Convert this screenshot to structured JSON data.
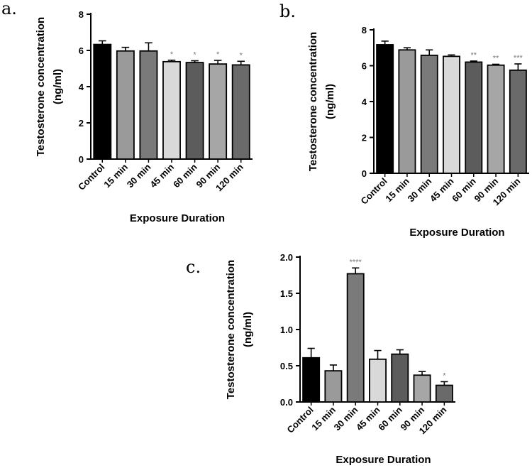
{
  "chart_data": [
    {
      "type": "bar",
      "panel_letter": "a.",
      "categories": [
        "Control",
        "15 min",
        "30 min",
        "45 min",
        "60 min",
        "90 min",
        "120 min"
      ],
      "values": [
        6.33,
        5.97,
        5.97,
        5.38,
        5.33,
        5.25,
        5.2
      ],
      "errors": [
        0.2,
        0.2,
        0.45,
        0.08,
        0.1,
        0.2,
        0.2
      ],
      "significance": [
        "",
        "",
        "",
        "*",
        "*",
        "*",
        "*"
      ],
      "bar_colors": [
        "#000000",
        "#9a9a9a",
        "#7a7a7a",
        "#d9d9d9",
        "#5c5c5c",
        "#a6a6a6",
        "#6a6a6a"
      ],
      "ylabel_lines": [
        "Testosterone concentration",
        "(ng/ml)"
      ],
      "xlabel": "Exposure Duration",
      "ylim": [
        0,
        8
      ],
      "yticks": [
        "0",
        "2",
        "4",
        "6",
        "8"
      ]
    },
    {
      "type": "bar",
      "panel_letter": "b.",
      "categories": [
        "Control",
        "15 min",
        "30 min",
        "45 min",
        "60 min",
        "90 min",
        "120 min"
      ],
      "values": [
        7.17,
        6.88,
        6.58,
        6.52,
        6.2,
        6.03,
        5.75
      ],
      "errors": [
        0.2,
        0.12,
        0.3,
        0.08,
        0.06,
        0.05,
        0.35
      ],
      "significance": [
        "",
        "",
        "",
        "",
        "**",
        "**",
        "***"
      ],
      "bar_colors": [
        "#000000",
        "#9a9a9a",
        "#7a7a7a",
        "#d9d9d9",
        "#5c5c5c",
        "#a6a6a6",
        "#6a6a6a"
      ],
      "ylabel_lines": [
        "Testosterone concentration",
        "(ng/ml)"
      ],
      "xlabel": "Exposure Duration",
      "ylim": [
        0,
        8
      ],
      "yticks": [
        "0",
        "2",
        "4",
        "6",
        "8"
      ]
    },
    {
      "type": "bar",
      "panel_letter": "c.",
      "categories": [
        "Control",
        "15 min",
        "30 min",
        "45 min",
        "60 min",
        "90 min",
        "120 min"
      ],
      "values": [
        0.61,
        0.43,
        1.77,
        0.59,
        0.66,
        0.37,
        0.23
      ],
      "errors": [
        0.13,
        0.08,
        0.08,
        0.12,
        0.06,
        0.05,
        0.05
      ],
      "significance": [
        "",
        "",
        "****",
        "",
        "",
        "",
        "*"
      ],
      "bar_colors": [
        "#000000",
        "#9a9a9a",
        "#7a7a7a",
        "#d9d9d9",
        "#5c5c5c",
        "#a6a6a6",
        "#6a6a6a"
      ],
      "ylabel_lines": [
        "Testosterone concentration",
        "(ng/ml)"
      ],
      "xlabel": "Exposure Duration",
      "ylim": [
        0,
        2
      ],
      "yticks": [
        "0.0",
        "0.5",
        "1.0",
        "1.5",
        "2.0"
      ]
    }
  ]
}
